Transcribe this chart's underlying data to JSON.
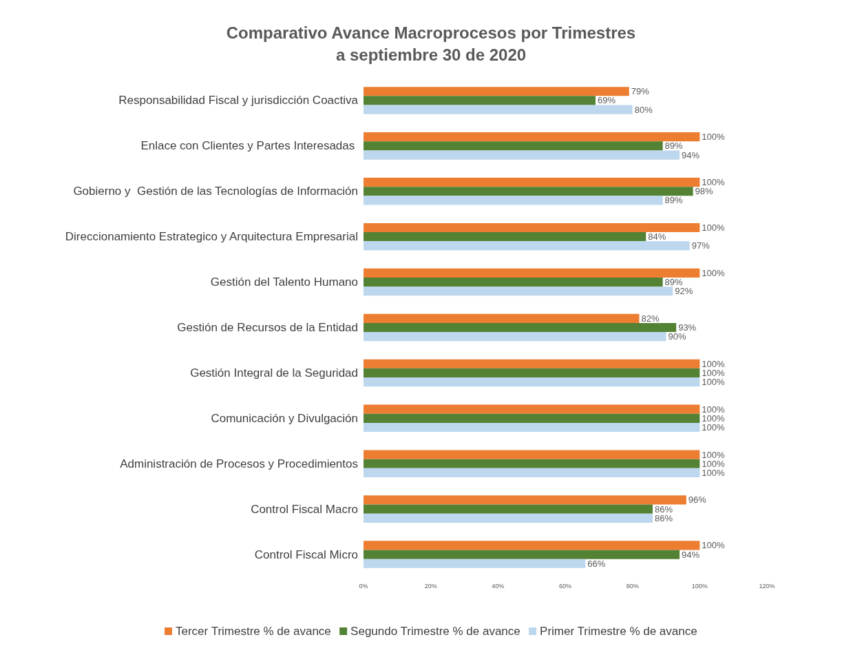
{
  "chart_data": {
    "type": "bar",
    "orientation": "horizontal",
    "title": "Comparativo Avance Macroprocesos por Trimestres\na septiembre 30 de 2020",
    "categories": [
      "Responsabilidad Fiscal y jurisdicción Coactiva",
      "Enlace con Clientes y Partes Interesadas ",
      "Gobierno y  Gestión de las Tecnologías de Información",
      "Direccionamiento Estrategico y Arquitectura Empresarial",
      "Gestión del Talento Humano",
      "Gestión de Recursos de la Entidad",
      "Gestión Integral de la Seguridad",
      "Comunicación y Divulgación",
      "Administración de Procesos y Procedimientos",
      "Control Fiscal Macro",
      "Control Fiscal Micro"
    ],
    "series": [
      {
        "name": "Tercer Trimestre % de avance",
        "color": "#ed7d31",
        "values": [
          79,
          100,
          100,
          100,
          100,
          82,
          100,
          100,
          100,
          96,
          100
        ],
        "value_labels": [
          "79%",
          "100%",
          "100%",
          "100%",
          "100%",
          "82%",
          "100%",
          "100%",
          "100%",
          "96%",
          "100%"
        ]
      },
      {
        "name": "Segundo Trimestre % de avance",
        "color": "#548235",
        "values": [
          69,
          89,
          98,
          84,
          89,
          93,
          100,
          100,
          100,
          86,
          94
        ],
        "value_labels": [
          "69%",
          "89%",
          "98%",
          "84%",
          "89%",
          "93%",
          "100%",
          "100%",
          "100%",
          "86%",
          "94%"
        ]
      },
      {
        "name": "Primer Trimestre % de avance",
        "color": "#bdd7ee",
        "values": [
          80,
          94,
          89,
          97,
          92,
          90,
          100,
          100,
          100,
          86,
          66
        ],
        "value_labels": [
          "80%",
          "94%",
          "89%",
          "97%",
          "92%",
          "90%",
          "100%",
          "100%",
          "100%",
          "86%",
          "66%"
        ]
      }
    ],
    "xlim": [
      0,
      120
    ],
    "xticks": [
      {
        "value": 0,
        "label": "0%"
      },
      {
        "value": 20,
        "label": "20%"
      },
      {
        "value": 40,
        "label": "40%"
      },
      {
        "value": 60,
        "label": "60%"
      },
      {
        "value": 80,
        "label": "80%"
      },
      {
        "value": 100,
        "label": "100%"
      },
      {
        "value": 120,
        "label": "120%"
      }
    ],
    "grid": false,
    "legend": "bottom"
  }
}
